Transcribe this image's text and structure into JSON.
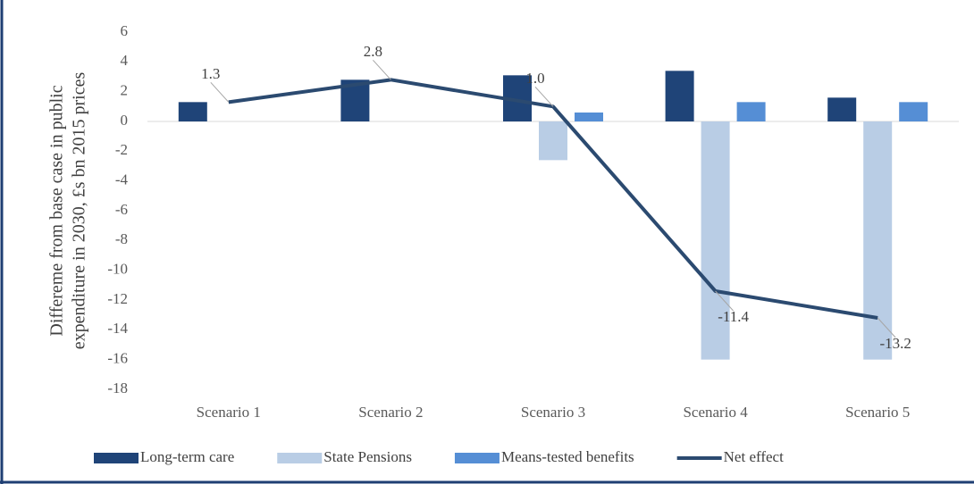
{
  "chart_data": {
    "type": "bar_line",
    "y_label": [
      "Differeme from base case  in public",
      "expenditure  in 2030, £s bn  2015 prices"
    ],
    "categories": [
      "Scenario 1",
      "Scenario 2",
      "Scenario 3",
      "Scenario 4",
      "Scenario 5"
    ],
    "series": [
      {
        "name": "Long-term care",
        "color": "#1f4478",
        "kind": "bar",
        "values": [
          1.3,
          2.8,
          3.1,
          3.4,
          1.6
        ]
      },
      {
        "name": "State Pensions",
        "color": "#b9cde5",
        "kind": "bar",
        "values": [
          0,
          0,
          -2.6,
          -16,
          -16
        ]
      },
      {
        "name": "Means-tested benefits",
        "color": "#558ed5",
        "kind": "bar",
        "values": [
          0,
          0,
          0.6,
          1.3,
          1.3
        ]
      },
      {
        "name": "Net effect",
        "color": "#2b4a70",
        "kind": "line",
        "values": [
          1.3,
          2.8,
          1.0,
          -11.4,
          -13.2
        ],
        "value_labels": [
          "1.3",
          "2.8",
          "1.0",
          "-11.4",
          "-13.2"
        ]
      }
    ],
    "ylim": [
      -18,
      6
    ],
    "yticks": [
      -18,
      -16,
      -14,
      -12,
      -10,
      -8,
      -6,
      -4,
      -2,
      0,
      2,
      4,
      6
    ],
    "legend": "bottom"
  }
}
